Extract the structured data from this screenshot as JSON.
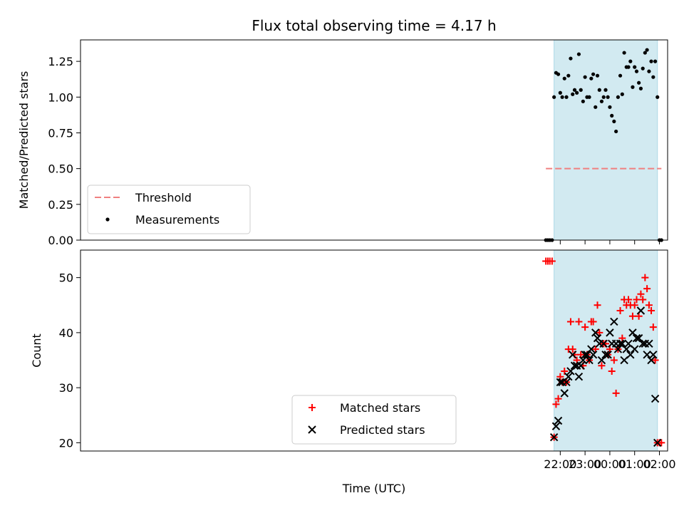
{
  "chart_data": {
    "type": "scatter",
    "title": "Flux total observing time = 4.17 h",
    "xlabel": "Time (UTC)",
    "x_unit": "hours since 00:00 UTC",
    "xlim": [
      -21.35,
      2.33
    ],
    "xticks": [
      -2,
      -1,
      0,
      1,
      2
    ],
    "xtick_labels": [
      "22:00",
      "23:00",
      "00:00",
      "01:00",
      "02:00"
    ],
    "observing_window": [
      -2.25,
      1.92
    ],
    "observing_window_color": "#add8e6",
    "panels": [
      {
        "id": "ratio",
        "ylabel": "Matched/Predicted stars",
        "ylim": [
          0.0,
          1.4
        ],
        "yticks": [
          0.0,
          0.25,
          0.5,
          0.75,
          1.0,
          1.25
        ],
        "ytick_labels": [
          "0.00",
          "0.25",
          "0.50",
          "0.75",
          "1.00",
          "1.25"
        ],
        "legend": "lower-left",
        "lines": [
          {
            "name": "Threshold",
            "style": "dashed",
            "color": "#f08080",
            "x": [
              -2.58,
              2.08
            ],
            "y": [
              0.5,
              0.5
            ]
          }
        ],
        "series": [
          {
            "name": "Measurements",
            "marker": "dot",
            "color": "#000000",
            "points": [
              [
                -2.58,
                0.0
              ],
              [
                -2.5,
                0.0
              ],
              [
                -2.42,
                0.0
              ],
              [
                -2.33,
                0.0
              ],
              [
                -2.25,
                1.0
              ],
              [
                -2.17,
                1.17
              ],
              [
                -2.08,
                1.16
              ],
              [
                -2.0,
                1.03
              ],
              [
                -1.92,
                1.0
              ],
              [
                -1.83,
                1.13
              ],
              [
                -1.75,
                1.0
              ],
              [
                -1.67,
                1.15
              ],
              [
                -1.58,
                1.27
              ],
              [
                -1.5,
                1.02
              ],
              [
                -1.42,
                1.05
              ],
              [
                -1.33,
                1.03
              ],
              [
                -1.25,
                1.3
              ],
              [
                -1.17,
                1.05
              ],
              [
                -1.08,
                0.97
              ],
              [
                -1.0,
                1.14
              ],
              [
                -0.92,
                1.0
              ],
              [
                -0.83,
                1.0
              ],
              [
                -0.75,
                1.13
              ],
              [
                -0.67,
                1.16
              ],
              [
                -0.58,
                0.93
              ],
              [
                -0.5,
                1.15
              ],
              [
                -0.42,
                1.05
              ],
              [
                -0.33,
                0.97
              ],
              [
                -0.25,
                1.0
              ],
              [
                -0.17,
                1.05
              ],
              [
                -0.08,
                1.0
              ],
              [
                0.0,
                0.93
              ],
              [
                0.08,
                0.87
              ],
              [
                0.17,
                0.83
              ],
              [
                0.25,
                0.76
              ],
              [
                0.33,
                1.0
              ],
              [
                0.42,
                1.15
              ],
              [
                0.5,
                1.02
              ],
              [
                0.58,
                1.31
              ],
              [
                0.67,
                1.21
              ],
              [
                0.75,
                1.21
              ],
              [
                0.83,
                1.25
              ],
              [
                0.92,
                1.07
              ],
              [
                1.0,
                1.21
              ],
              [
                1.08,
                1.18
              ],
              [
                1.17,
                1.1
              ],
              [
                1.25,
                1.06
              ],
              [
                1.33,
                1.2
              ],
              [
                1.42,
                1.31
              ],
              [
                1.5,
                1.33
              ],
              [
                1.58,
                1.18
              ],
              [
                1.67,
                1.25
              ],
              [
                1.75,
                1.14
              ],
              [
                1.83,
                1.25
              ],
              [
                1.92,
                1.0
              ],
              [
                2.0,
                0.0
              ],
              [
                2.08,
                0.0
              ]
            ]
          }
        ]
      },
      {
        "id": "count",
        "ylabel": "Count",
        "ylim": [
          18.5,
          55.0
        ],
        "yticks": [
          20,
          30,
          40,
          50
        ],
        "ytick_labels": [
          "20",
          "30",
          "40",
          "50"
        ],
        "legend": "lower-center",
        "series": [
          {
            "name": "Matched stars",
            "marker": "plus",
            "color": "#ff0000",
            "points": [
              [
                -2.58,
                53
              ],
              [
                -2.5,
                53
              ],
              [
                -2.42,
                53
              ],
              [
                -2.33,
                53
              ],
              [
                -2.25,
                21
              ],
              [
                -2.17,
                27
              ],
              [
                -2.08,
                28
              ],
              [
                -2.0,
                32
              ],
              [
                -1.92,
                31
              ],
              [
                -1.83,
                33
              ],
              [
                -1.75,
                31
              ],
              [
                -1.67,
                37
              ],
              [
                -1.58,
                42
              ],
              [
                -1.5,
                37
              ],
              [
                -1.42,
                36
              ],
              [
                -1.33,
                35
              ],
              [
                -1.25,
                42
              ],
              [
                -1.17,
                36
              ],
              [
                -1.08,
                34
              ],
              [
                -1.0,
                41
              ],
              [
                -0.92,
                36
              ],
              [
                -0.83,
                35
              ],
              [
                -0.75,
                42
              ],
              [
                -0.67,
                42
              ],
              [
                -0.58,
                37
              ],
              [
                -0.5,
                45
              ],
              [
                -0.42,
                40
              ],
              [
                -0.33,
                34
              ],
              [
                -0.25,
                38
              ],
              [
                -0.17,
                38
              ],
              [
                -0.08,
                36
              ],
              [
                0.0,
                37
              ],
              [
                0.08,
                33
              ],
              [
                0.17,
                35
              ],
              [
                0.25,
                29
              ],
              [
                0.33,
                37
              ],
              [
                0.42,
                44
              ],
              [
                0.5,
                39
              ],
              [
                0.58,
                46
              ],
              [
                0.67,
                45
              ],
              [
                0.75,
                46
              ],
              [
                0.83,
                45
              ],
              [
                0.92,
                43
              ],
              [
                1.0,
                45
              ],
              [
                1.08,
                46
              ],
              [
                1.17,
                43
              ],
              [
                1.25,
                47
              ],
              [
                1.33,
                46
              ],
              [
                1.42,
                50
              ],
              [
                1.5,
                48
              ],
              [
                1.58,
                45
              ],
              [
                1.67,
                44
              ],
              [
                1.75,
                41
              ],
              [
                1.83,
                35
              ],
              [
                1.92,
                20
              ],
              [
                2.0,
                20
              ],
              [
                2.08,
                20
              ]
            ]
          },
          {
            "name": "Predicted stars",
            "marker": "x",
            "color": "#000000",
            "points": [
              [
                -2.25,
                21
              ],
              [
                -2.17,
                23
              ],
              [
                -2.08,
                24
              ],
              [
                -2.0,
                31
              ],
              [
                -1.92,
                31
              ],
              [
                -1.83,
                29
              ],
              [
                -1.75,
                31
              ],
              [
                -1.67,
                32
              ],
              [
                -1.58,
                33
              ],
              [
                -1.5,
                36
              ],
              [
                -1.42,
                34
              ],
              [
                -1.33,
                34
              ],
              [
                -1.25,
                32
              ],
              [
                -1.17,
                34
              ],
              [
                -1.08,
                35
              ],
              [
                -1.0,
                36
              ],
              [
                -0.92,
                36
              ],
              [
                -0.83,
                35
              ],
              [
                -0.75,
                37
              ],
              [
                -0.67,
                36
              ],
              [
                -0.58,
                40
              ],
              [
                -0.5,
                39
              ],
              [
                -0.42,
                38
              ],
              [
                -0.33,
                35
              ],
              [
                -0.25,
                38
              ],
              [
                -0.17,
                36
              ],
              [
                -0.08,
                36
              ],
              [
                0.0,
                40
              ],
              [
                0.08,
                38
              ],
              [
                0.17,
                42
              ],
              [
                0.25,
                38
              ],
              [
                0.33,
                37
              ],
              [
                0.42,
                38
              ],
              [
                0.5,
                38
              ],
              [
                0.58,
                35
              ],
              [
                0.67,
                37
              ],
              [
                0.75,
                38
              ],
              [
                0.83,
                36
              ],
              [
                0.92,
                40
              ],
              [
                1.0,
                37
              ],
              [
                1.08,
                39
              ],
              [
                1.17,
                39
              ],
              [
                1.25,
                44
              ],
              [
                1.33,
                38
              ],
              [
                1.42,
                38
              ],
              [
                1.5,
                36
              ],
              [
                1.58,
                38
              ],
              [
                1.67,
                35
              ],
              [
                1.75,
                36
              ],
              [
                1.83,
                28
              ],
              [
                1.92,
                20
              ]
            ]
          }
        ]
      }
    ]
  }
}
